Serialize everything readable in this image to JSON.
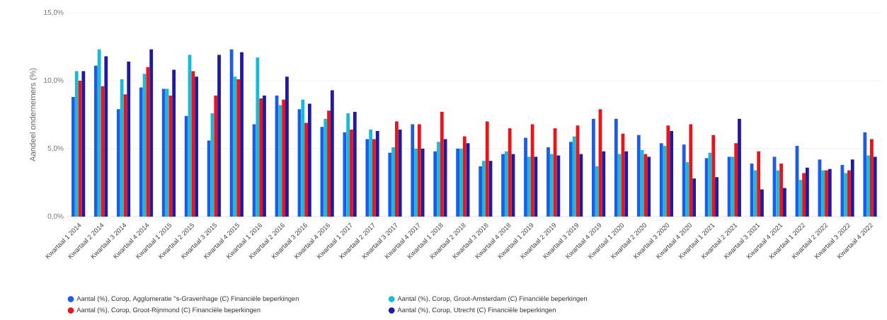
{
  "chart_data": {
    "type": "bar",
    "ylabel": "Aandeel ondernemers (%)",
    "categories": [
      "Kwartaal 1 2014",
      "Kwartaal 2 2014",
      "Kwartaal 3 2014",
      "Kwartaal 4 2014",
      "Kwartaal 1 2015",
      "Kwartaal 2 2015",
      "Kwartaal 3 2015",
      "Kwartaal 4 2015",
      "Kwartaal 1 2016",
      "Kwartaal 2 2016",
      "Kwartaal 3 2016",
      "Kwartaal 4 2016",
      "Kwartaal 1 2017",
      "Kwartaal 2 2017",
      "Kwartaal 3 2017",
      "Kwartaal 4 2017",
      "Kwartaal 1 2018",
      "Kwartaal 2 2018",
      "Kwartaal 3 2018",
      "Kwartaal 4 2018",
      "Kwartaal 1 2019",
      "Kwartaal 2 2019",
      "Kwartaal 3 2019",
      "Kwartaal 4 2019",
      "Kwartaal 1 2020",
      "Kwartaal 2 2020",
      "Kwartaal 3 2020",
      "Kwartaal 4 2020",
      "Kwartaal 1 2021",
      "Kwartaal 2 2021",
      "Kwartaal 3 2021",
      "Kwartaal 4 2021",
      "Kwartaal 1 2022",
      "Kwartaal 2 2022",
      "Kwartaal 3 2022",
      "Kwartaal 4 2022"
    ],
    "series": [
      {
        "name": "Aantal (%), Corop, Agglomeratie ''s-Gravenhage (C) Financiële beperkingen",
        "color": "#1f5bea",
        "values": [
          8.8,
          11.1,
          7.9,
          9.5,
          9.4,
          7.4,
          5.6,
          12.3,
          6.8,
          8.9,
          7.9,
          6.6,
          6.2,
          5.7,
          4.7,
          6.8,
          4.8,
          5.0,
          3.7,
          4.6,
          5.8,
          5.1,
          5.5,
          7.2,
          7.2,
          6.0,
          5.4,
          5.3,
          4.3,
          4.4,
          3.9,
          4.4,
          5.2,
          4.2,
          3.8,
          6.2
        ]
      },
      {
        "name": "Aantal (%), Corop, Groot-Amsterdam (C) Financiële beperkingen",
        "color": "#16bcd6",
        "values": [
          10.7,
          12.3,
          10.1,
          10.5,
          9.4,
          11.9,
          7.6,
          10.3,
          11.7,
          8.2,
          8.6,
          7.2,
          7.6,
          6.4,
          5.1,
          5.0,
          5.5,
          5.0,
          4.1,
          4.8,
          4.4,
          4.6,
          5.9,
          3.7,
          4.6,
          4.9,
          5.2,
          4.0,
          4.7,
          4.4,
          3.4,
          3.4,
          2.7,
          3.4,
          3.2,
          4.5
        ]
      },
      {
        "name": "Aantal (%), Corop, Groot-Rijnmond (C) Financiële beperkingen",
        "color": "#e8151b",
        "values": [
          10.0,
          9.6,
          9.0,
          11.0,
          8.9,
          10.7,
          8.9,
          10.1,
          8.7,
          8.6,
          6.9,
          7.8,
          6.4,
          5.7,
          7.0,
          6.8,
          7.7,
          5.9,
          7.0,
          6.5,
          6.8,
          6.5,
          6.7,
          7.9,
          6.1,
          4.6,
          6.7,
          6.8,
          6.0,
          5.4,
          4.8,
          3.9,
          3.2,
          3.4,
          3.4,
          5.7
        ]
      },
      {
        "name": "Aantal (%), Corop, Utrecht (C) Financiële beperkingen",
        "color": "#1f1aa0",
        "values": [
          10.7,
          11.8,
          11.4,
          12.3,
          10.8,
          10.3,
          11.9,
          12.1,
          8.9,
          10.3,
          8.3,
          9.3,
          7.7,
          6.3,
          6.4,
          5.0,
          5.7,
          5.4,
          4.1,
          4.6,
          4.4,
          4.5,
          4.6,
          4.8,
          4.8,
          4.4,
          6.3,
          2.8,
          2.9,
          7.2,
          2.0,
          2.1,
          3.6,
          3.5,
          4.2,
          4.4
        ]
      }
    ],
    "ylim": [
      0,
      15
    ],
    "yticks": [
      {
        "value": 0,
        "label": "0,0%"
      },
      {
        "value": 5,
        "label": "5,0%"
      },
      {
        "value": 10,
        "label": "10,0%"
      },
      {
        "value": 15,
        "label": "15,0%"
      }
    ],
    "grid": "y",
    "legend": "bottom"
  }
}
